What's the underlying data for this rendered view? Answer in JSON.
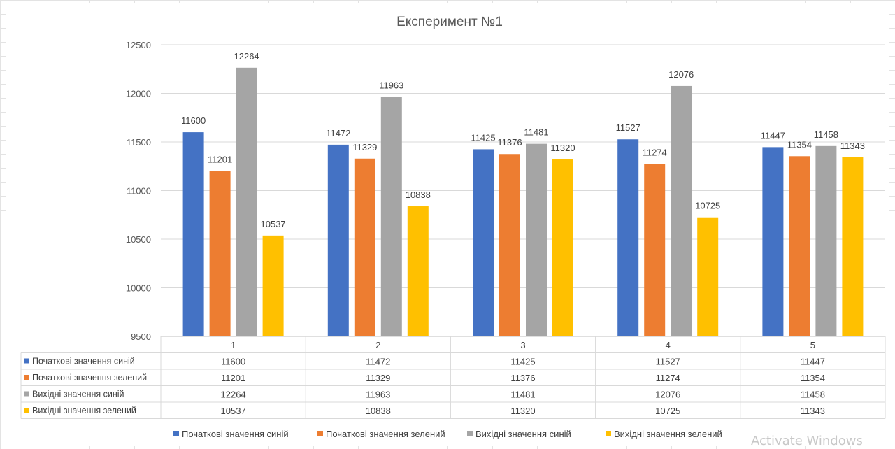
{
  "chart_data": {
    "type": "bar",
    "title": "Експеримент №1",
    "categories": [
      "1",
      "2",
      "3",
      "4",
      "5"
    ],
    "series": [
      {
        "name": "Початкові значення синій",
        "color": "#4472c4",
        "values": [
          11600,
          11472,
          11425,
          11527,
          11447
        ]
      },
      {
        "name": "Початкові значення зелений",
        "color": "#ed7d31",
        "values": [
          11201,
          11329,
          11376,
          11274,
          11354
        ]
      },
      {
        "name": "Вихідні значення синій",
        "color": "#a5a5a5",
        "values": [
          12264,
          11963,
          11481,
          12076,
          11458
        ]
      },
      {
        "name": "Вихідні значення зелений",
        "color": "#ffc000",
        "values": [
          10537,
          10838,
          11320,
          10725,
          11343
        ]
      }
    ],
    "ylim": [
      9500,
      12500
    ],
    "yticks": [
      9500,
      10000,
      10500,
      11000,
      11500,
      12000,
      12500
    ],
    "grid": true,
    "data_table": true,
    "legend_position": "bottom"
  },
  "watermark": "Activate Windows"
}
